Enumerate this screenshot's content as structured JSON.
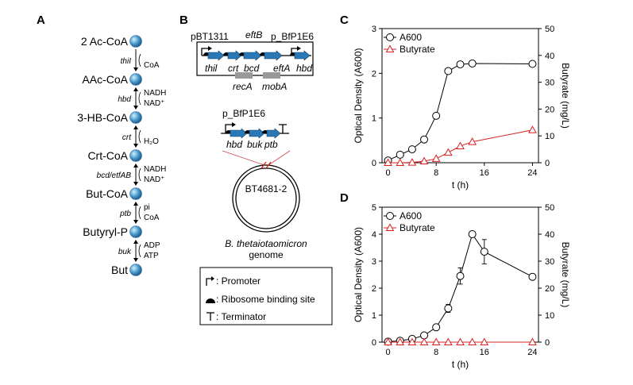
{
  "panel_labels": {
    "a": "A",
    "b": "B",
    "c": "C",
    "d": "D"
  },
  "pathway": {
    "metabolites": [
      "2 Ac-CoA",
      "AAc-CoA",
      "3-HB-CoA",
      "Crt-CoA",
      "But-CoA",
      "Butyryl-P",
      "But"
    ],
    "steps": [
      {
        "enzyme": "thiI",
        "cofactors": [
          "",
          "CoA"
        ]
      },
      {
        "enzyme": "hbd",
        "cofactors": [
          "NADH",
          "NAD⁺"
        ]
      },
      {
        "enzyme": "crt",
        "cofactors": [
          "",
          "H₂O"
        ]
      },
      {
        "enzyme": "bcd/etfAB",
        "cofactors": [
          "NADH",
          "NAD⁺"
        ]
      },
      {
        "enzyme": "ptb",
        "cofactors": [
          "pi",
          "CoA"
        ]
      },
      {
        "enzyme": "buk",
        "cofactors": [
          "ADP",
          "ATP"
        ]
      }
    ],
    "node_color": "#4a9fd0"
  },
  "constructs": {
    "plasmid1": {
      "promoter_left": "pBT1311",
      "promoter_right": "p_BfP1E6",
      "top_gene": "eftB",
      "genes": [
        "thil",
        "crt",
        "bcd",
        "eftA",
        "hbd"
      ],
      "backbone": [
        "recA",
        "mobA"
      ]
    },
    "plasmid2": {
      "promoter": "p_BfP1E6",
      "genes": [
        "hbd",
        "buk",
        "ptb"
      ]
    },
    "genome": {
      "site": "BT4681-2",
      "organism": "B. thetaiotaomicron",
      "label": "genome"
    },
    "gene_color": "#2a78b5",
    "legend": [
      {
        "symbol": "promoter-icon",
        "text": ": Promoter"
      },
      {
        "symbol": "rbs-icon",
        "text": ": Ribosome binding site"
      },
      {
        "symbol": "terminator-icon",
        "text": ": Terminator"
      }
    ]
  },
  "chart_data": [
    {
      "panel": "C",
      "type": "line",
      "xlabel": "t (h)",
      "ylabel_left": "Optical Density (A600)",
      "ylabel_right": "Butyrate (mg/L)",
      "x_ticks": [
        0,
        8,
        16,
        24
      ],
      "y_left_ticks": [
        0,
        1,
        2,
        3
      ],
      "y_right_ticks": [
        0,
        10,
        20,
        30,
        40,
        50
      ],
      "xlim": [
        -1,
        25
      ],
      "ylim_left": [
        0,
        3
      ],
      "ylim_right": [
        0,
        50
      ],
      "legend_position": "top-left",
      "series": [
        {
          "name": "A600",
          "axis": "left",
          "marker": "circle",
          "color": "#000000",
          "x": [
            0,
            2,
            4,
            6,
            8,
            10,
            12,
            14,
            24
          ],
          "y": [
            0.05,
            0.18,
            0.3,
            0.52,
            1.05,
            2.05,
            2.2,
            2.22,
            2.21
          ],
          "err": [
            0,
            0,
            0,
            0,
            0,
            0,
            0,
            0,
            0
          ]
        },
        {
          "name": "Butyrate",
          "axis": "right",
          "marker": "triangle",
          "color": "#d92020",
          "x": [
            0,
            2,
            4,
            6,
            8,
            10,
            12,
            14,
            24
          ],
          "y": [
            0,
            0,
            0.1,
            0.6,
            1.5,
            3.8,
            6.2,
            7.8,
            12.2
          ],
          "err": [
            0,
            0,
            0,
            0,
            0,
            0,
            0,
            0,
            0
          ]
        }
      ]
    },
    {
      "panel": "D",
      "type": "line",
      "xlabel": "t (h)",
      "ylabel_left": "Optical Density (A600)",
      "ylabel_right": "Butyrate (mg/L)",
      "x_ticks": [
        0,
        8,
        16,
        24
      ],
      "y_left_ticks": [
        0,
        1,
        2,
        3,
        4,
        5
      ],
      "y_right_ticks": [
        0,
        10,
        20,
        30,
        40,
        50
      ],
      "xlim": [
        -1,
        25
      ],
      "ylim_left": [
        0,
        5
      ],
      "ylim_right": [
        0,
        50
      ],
      "legend_position": "top-left",
      "series": [
        {
          "name": "A600",
          "axis": "left",
          "marker": "circle",
          "color": "#000000",
          "x": [
            0,
            2,
            4,
            6,
            8,
            10,
            12,
            14,
            16,
            24
          ],
          "y": [
            0.02,
            0.05,
            0.12,
            0.25,
            0.55,
            1.25,
            2.45,
            4.0,
            3.35,
            2.42
          ],
          "err": [
            0,
            0,
            0,
            0,
            0,
            0.15,
            0.3,
            0,
            0.45,
            0
          ]
        },
        {
          "name": "Butyrate",
          "axis": "right",
          "marker": "triangle",
          "color": "#d92020",
          "x": [
            0,
            2,
            4,
            6,
            8,
            10,
            12,
            14,
            16,
            24
          ],
          "y": [
            0,
            0,
            0,
            0,
            0,
            0,
            0,
            0,
            0,
            0
          ],
          "err": [
            0,
            0,
            0,
            0,
            0,
            0,
            0,
            0,
            0,
            0
          ]
        }
      ]
    }
  ]
}
